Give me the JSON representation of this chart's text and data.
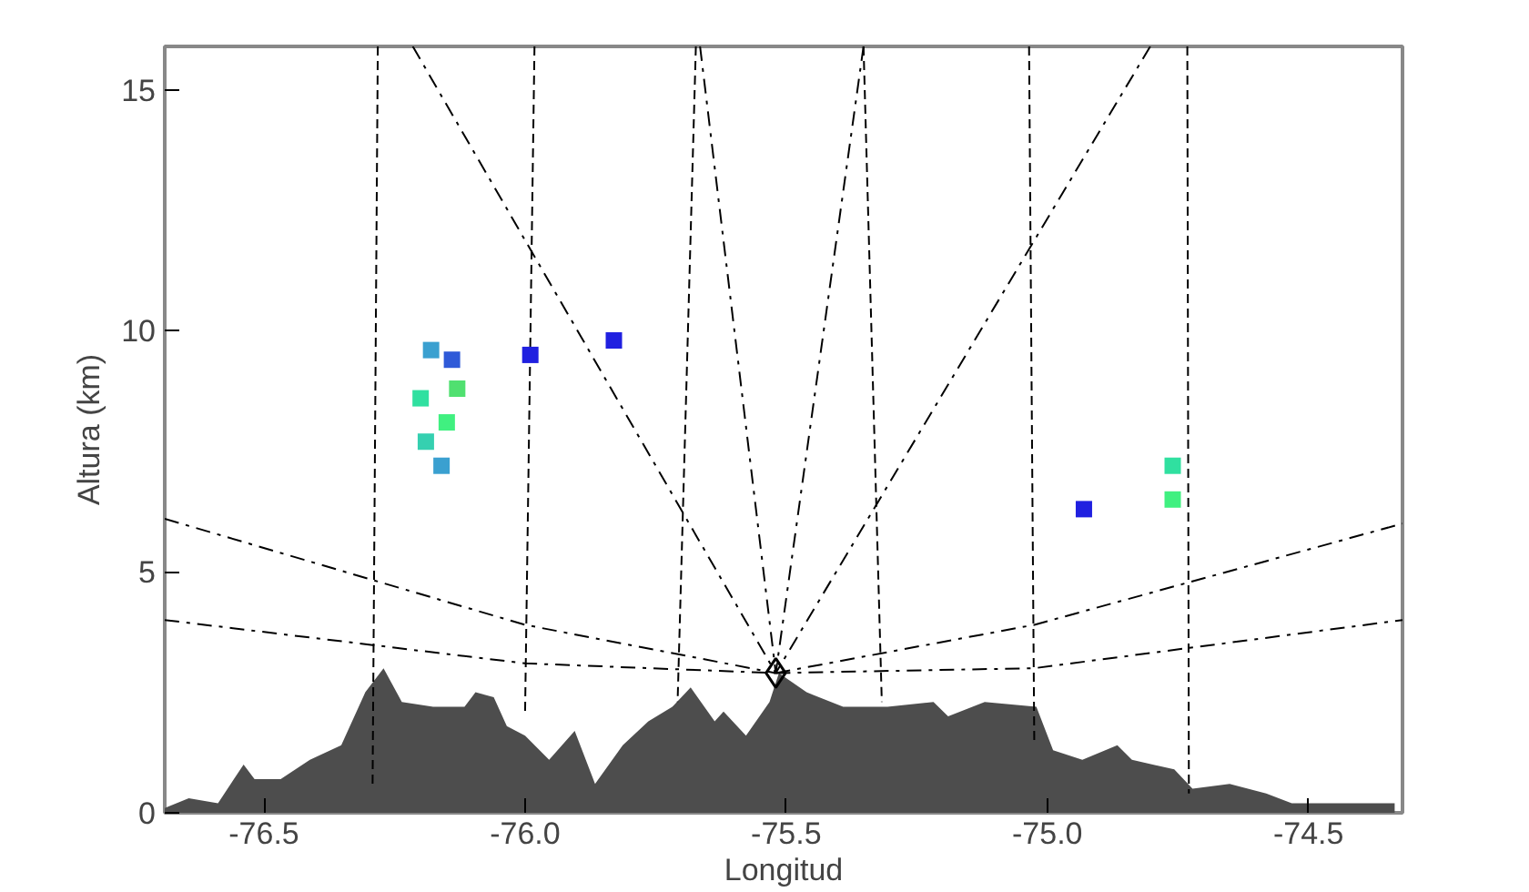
{
  "chart_data": {
    "type": "area",
    "xlabel": "Longitud",
    "ylabel": "Altura (km)",
    "xlim": [
      -76.69,
      -74.32
    ],
    "ylim": [
      0,
      15.9
    ],
    "xticks": [
      {
        "value": -76.5,
        "label": "-76.5"
      },
      {
        "value": -76.0,
        "label": "-76.0"
      },
      {
        "value": -75.5,
        "label": "-75.5"
      },
      {
        "value": -75.0,
        "label": "-75.0"
      },
      {
        "value": -74.5,
        "label": "-74.5"
      }
    ],
    "yticks": [
      0,
      5,
      10,
      15
    ],
    "grid": false,
    "series": [
      {
        "color": "#4d4d4d",
        "x": [
          -76.69,
          -76.644,
          -76.588,
          -76.539,
          -76.518,
          -76.468,
          -76.412,
          -76.352,
          -76.306,
          -76.271,
          -76.236,
          -76.176,
          -76.116,
          -76.095,
          -76.06,
          -76.035,
          -76.0,
          -75.954,
          -75.905,
          -75.866,
          -75.813,
          -75.764,
          -75.718,
          -75.683,
          -75.637,
          -75.62,
          -75.577,
          -75.532,
          -75.514,
          -75.461,
          -75.391,
          -75.306,
          -75.218,
          -75.19,
          -75.12,
          -75.021,
          -74.989,
          -74.933,
          -74.866,
          -74.838,
          -74.757,
          -74.722,
          -74.651,
          -74.581,
          -74.532,
          -74.426,
          -74.335
        ],
        "values": [
          0.1,
          0.3,
          0.2,
          1.0,
          0.7,
          0.7,
          1.1,
          1.4,
          2.5,
          3.0,
          2.3,
          2.2,
          2.2,
          2.5,
          2.4,
          1.8,
          1.6,
          1.1,
          1.7,
          0.6,
          1.4,
          1.9,
          2.2,
          2.6,
          1.9,
          2.1,
          1.6,
          2.3,
          2.9,
          2.5,
          2.2,
          2.2,
          2.3,
          2.0,
          2.3,
          2.2,
          1.3,
          1.1,
          1.4,
          1.1,
          0.9,
          0.5,
          0.6,
          0.4,
          0.2,
          0.2,
          0.2
        ]
      },
      {
        "type": "line",
        "line_style": "dashed",
        "color": "#000000",
        "x": [
          -76.282,
          -76.292
        ],
        "values": [
          15.9,
          0.6
        ]
      },
      {
        "type": "line",
        "line_style": "dashed",
        "color": "#000000",
        "x": [
          -75.982,
          -76.0
        ],
        "values": [
          15.9,
          2.1
        ]
      },
      {
        "type": "line",
        "line_style": "dashed",
        "color": "#000000",
        "x": [
          -75.673,
          -75.708
        ],
        "values": [
          15.9,
          2.3
        ]
      },
      {
        "type": "line",
        "line_style": "dashed",
        "color": "#000000",
        "x": [
          -75.352,
          -75.317
        ],
        "values": [
          15.9,
          2.3
        ]
      },
      {
        "type": "line",
        "line_style": "dashed",
        "color": "#000000",
        "x": [
          -75.035,
          -75.025
        ],
        "values": [
          15.9,
          1.4
        ]
      },
      {
        "type": "line",
        "line_style": "dashed",
        "color": "#000000",
        "x": [
          -74.732,
          -74.729
        ],
        "values": [
          15.9,
          0.4
        ]
      },
      {
        "type": "line",
        "line_style": "dashdot",
        "color": "#000000",
        "x": [
          -76.215,
          -75.52
        ],
        "values": [
          15.9,
          2.9
        ]
      },
      {
        "type": "line",
        "line_style": "dashdot",
        "color": "#000000",
        "x": [
          -75.665,
          -75.52
        ],
        "values": [
          15.9,
          2.9
        ]
      },
      {
        "type": "line",
        "line_style": "dashdot",
        "color": "#000000",
        "x": [
          -75.352,
          -75.52
        ],
        "values": [
          15.9,
          2.9
        ]
      },
      {
        "type": "line",
        "line_style": "dashdot",
        "color": "#000000",
        "x": [
          -74.803,
          -75.52
        ],
        "values": [
          15.9,
          2.9
        ]
      },
      {
        "type": "line",
        "line_style": "dashdot",
        "color": "#000000",
        "x": [
          -76.69,
          -76.0,
          -75.52
        ],
        "values": [
          6.1,
          3.9,
          2.9
        ]
      },
      {
        "type": "line",
        "line_style": "dashdot",
        "color": "#000000",
        "x": [
          -76.69,
          -76.0,
          -75.52
        ],
        "values": [
          4.0,
          3.1,
          2.9
        ]
      },
      {
        "type": "line",
        "line_style": "dashdot",
        "color": "#000000",
        "x": [
          -75.52,
          -75.025,
          -74.32
        ],
        "values": [
          2.9,
          3.9,
          6.0
        ]
      },
      {
        "type": "line",
        "line_style": "dashdot",
        "color": "#000000",
        "x": [
          -75.52,
          -75.025,
          -74.32
        ],
        "values": [
          2.9,
          3.0,
          4.0
        ]
      },
      {
        "type": "scatter",
        "marker": "square",
        "x": [
          -76.18,
          -76.14,
          -76.2,
          -76.15,
          -76.19,
          -76.16,
          -76.13,
          -75.99,
          -75.83,
          -74.93,
          -74.76,
          -74.76
        ],
        "values": [
          9.6,
          9.4,
          8.6,
          8.1,
          7.7,
          7.2,
          8.8,
          9.5,
          9.8,
          6.3,
          7.2,
          6.5
        ],
        "colors": [
          "#3aa0d0",
          "#2f5ad8",
          "#30e0a0",
          "#40f080",
          "#35d0b0",
          "#3aa0d0",
          "#50e070",
          "#2020e0",
          "#2020e0",
          "#2020e0",
          "#30e0a0",
          "#40f080"
        ]
      },
      {
        "type": "scatter",
        "marker": "diamond",
        "color": "#000000",
        "x": [
          -75.52
        ],
        "values": [
          2.9
        ]
      }
    ]
  }
}
